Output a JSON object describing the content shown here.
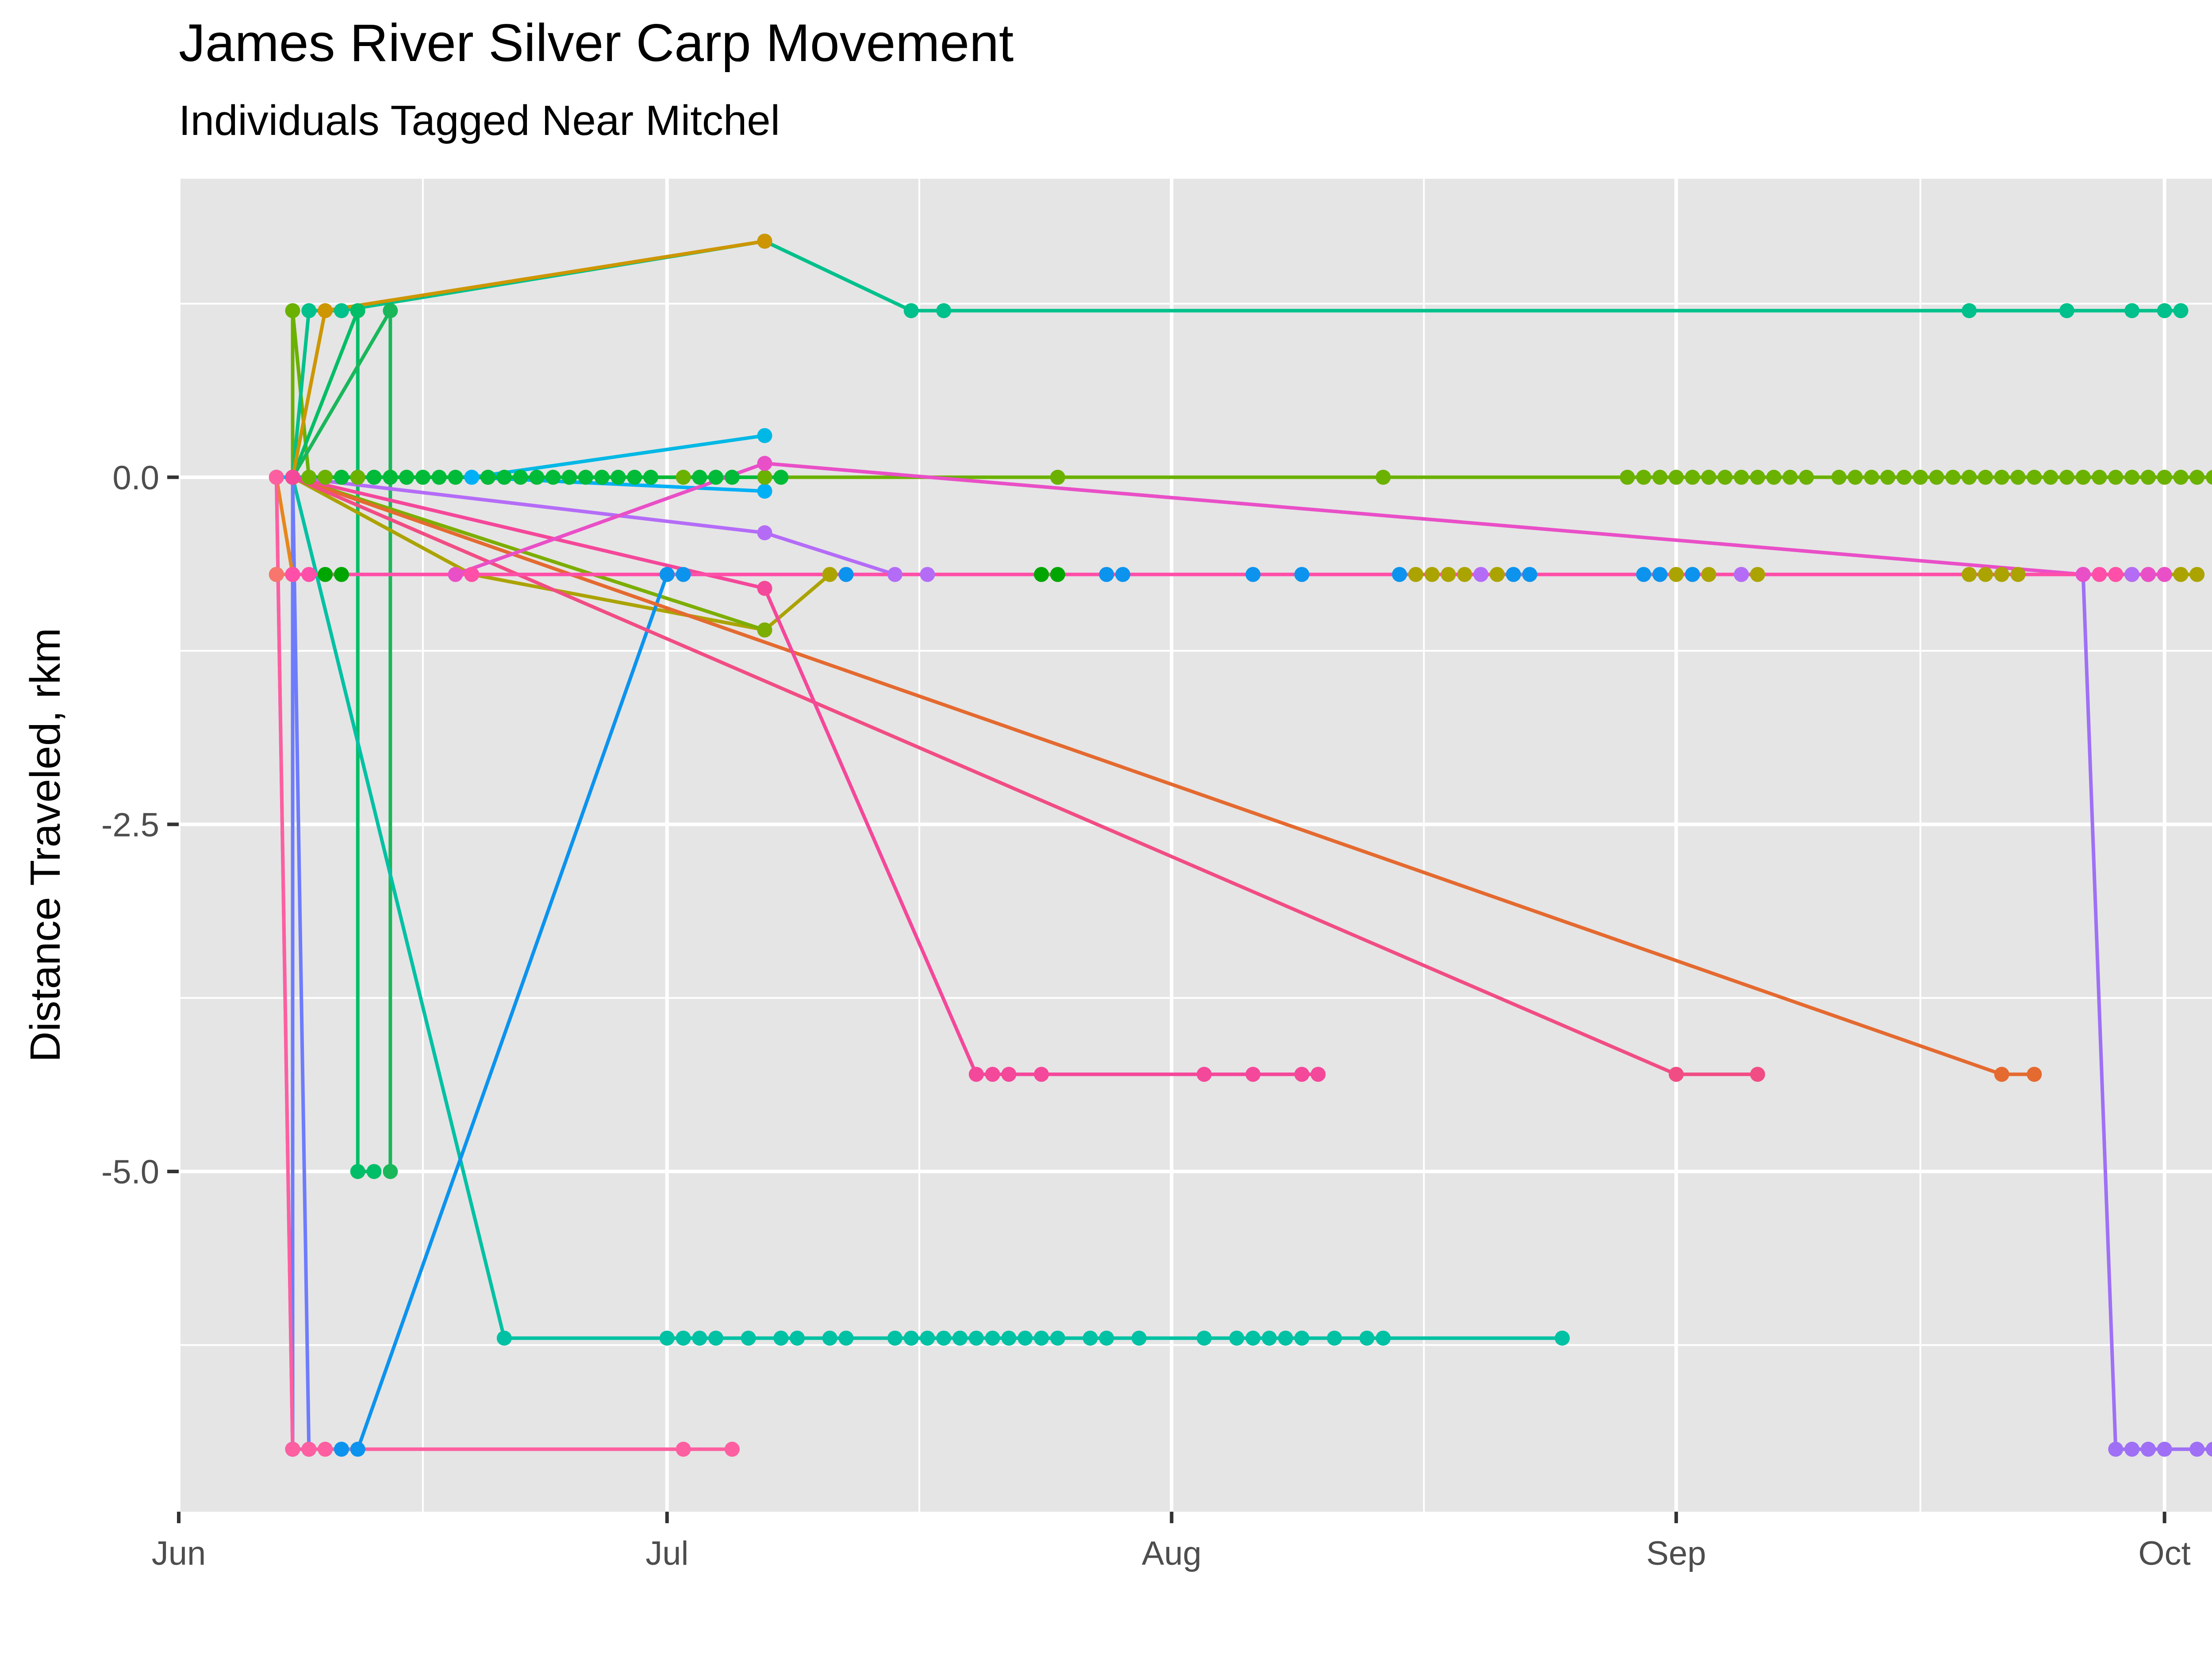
{
  "chart_data": {
    "type": "line",
    "title": "James River Silver Carp Movement",
    "subtitle": "Individuals Tagged Near Mitchel",
    "xlabel": "",
    "ylabel": "Distance Traveled, rkm",
    "x_is_date": true,
    "xlim": [
      "2023-06-01",
      "2023-10-09"
    ],
    "ylim": [
      -7.45,
      2.15
    ],
    "x_ticks": [
      {
        "date": "2023-06-01",
        "label": "Jun"
      },
      {
        "date": "2023-07-01",
        "label": "Jul"
      },
      {
        "date": "2023-08-01",
        "label": "Aug"
      },
      {
        "date": "2023-09-01",
        "label": "Sep"
      },
      {
        "date": "2023-10-01",
        "label": "Oct"
      }
    ],
    "y_ticks": [
      {
        "value": -5.0,
        "label": "-5.0"
      },
      {
        "value": -2.5,
        "label": "-2.5"
      },
      {
        "value": 0.0,
        "label": "0.0"
      }
    ],
    "grid": true,
    "legend": "none",
    "colors": {
      "panel_background": "#e5e5e5",
      "grid": "#ffffff",
      "tick_label": "#4d4d4d"
    },
    "series": [
      {
        "color": "#00b8e5",
        "points": [
          [
            "2023-06-07",
            0
          ],
          [
            "2023-06-08",
            0
          ],
          [
            "2023-06-19",
            0
          ],
          [
            "2023-07-07",
            0.3
          ]
        ]
      },
      {
        "color": "#00b0f6",
        "points": [
          [
            "2023-06-07",
            0
          ],
          [
            "2023-06-13",
            0
          ],
          [
            "2023-06-19",
            0
          ],
          [
            "2023-07-07",
            -0.1
          ]
        ]
      },
      {
        "color": "#6bb100",
        "points": [
          [
            "2023-06-08",
            0
          ],
          [
            "2023-06-08",
            1.2
          ],
          [
            "2023-06-09",
            0
          ],
          [
            "2023-06-10",
            0
          ],
          [
            "2023-06-12",
            0
          ],
          [
            "2023-06-15",
            0
          ],
          [
            "2023-06-20",
            0
          ],
          [
            "2023-06-25",
            0
          ],
          [
            "2023-07-02",
            0
          ],
          [
            "2023-07-07",
            0
          ],
          [
            "2023-07-25",
            0
          ],
          [
            "2023-08-14",
            0
          ],
          [
            "2023-08-29",
            0
          ],
          [
            "2023-08-30",
            0
          ],
          [
            "2023-08-31",
            0
          ],
          [
            "2023-09-01",
            0
          ],
          [
            "2023-09-02",
            0
          ],
          [
            "2023-09-03",
            0
          ],
          [
            "2023-09-04",
            0
          ],
          [
            "2023-09-05",
            0
          ],
          [
            "2023-09-06",
            0
          ],
          [
            "2023-09-07",
            0
          ],
          [
            "2023-09-08",
            0
          ],
          [
            "2023-09-09",
            0
          ],
          [
            "2023-09-11",
            0
          ],
          [
            "2023-09-12",
            0
          ],
          [
            "2023-09-13",
            0
          ],
          [
            "2023-09-14",
            0
          ],
          [
            "2023-09-15",
            0
          ],
          [
            "2023-09-16",
            0
          ],
          [
            "2023-09-17",
            0
          ],
          [
            "2023-09-18",
            0
          ],
          [
            "2023-09-19",
            0
          ],
          [
            "2023-09-20",
            0
          ],
          [
            "2023-09-21",
            0
          ],
          [
            "2023-09-22",
            0
          ],
          [
            "2023-09-23",
            0
          ],
          [
            "2023-09-24",
            0
          ],
          [
            "2023-09-25",
            0
          ],
          [
            "2023-09-26",
            0
          ],
          [
            "2023-09-27",
            0
          ],
          [
            "2023-09-28",
            0
          ],
          [
            "2023-09-29",
            0
          ],
          [
            "2023-09-30",
            0
          ],
          [
            "2023-10-01",
            0
          ],
          [
            "2023-10-02",
            0
          ],
          [
            "2023-10-03",
            0
          ],
          [
            "2023-10-04",
            0
          ],
          [
            "2023-10-05",
            0
          ]
        ]
      },
      {
        "color": "#00ba38",
        "points": [
          [
            "2023-06-08",
            0
          ],
          [
            "2023-06-11",
            0
          ],
          [
            "2023-06-13",
            0
          ],
          [
            "2023-06-14",
            0
          ],
          [
            "2023-06-15",
            0
          ],
          [
            "2023-06-16",
            0
          ],
          [
            "2023-06-17",
            0
          ],
          [
            "2023-06-18",
            0
          ],
          [
            "2023-06-20",
            0
          ],
          [
            "2023-06-21",
            0
          ],
          [
            "2023-06-22",
            0
          ],
          [
            "2023-06-23",
            0
          ],
          [
            "2023-06-24",
            0
          ],
          [
            "2023-06-25",
            0
          ],
          [
            "2023-06-26",
            0
          ],
          [
            "2023-06-27",
            0
          ],
          [
            "2023-06-28",
            0
          ],
          [
            "2023-06-29",
            0
          ],
          [
            "2023-06-30",
            0
          ],
          [
            "2023-07-03",
            0
          ],
          [
            "2023-07-04",
            0
          ],
          [
            "2023-07-05",
            0
          ],
          [
            "2023-07-08",
            0
          ]
        ]
      },
      {
        "color": "#00c08b",
        "points": [
          [
            "2023-06-08",
            0
          ],
          [
            "2023-06-09",
            1.2
          ],
          [
            "2023-06-11",
            1.2
          ],
          [
            "2023-07-07",
            1.7
          ],
          [
            "2023-07-16",
            1.2
          ],
          [
            "2023-07-18",
            1.2
          ],
          [
            "2023-09-19",
            1.2
          ],
          [
            "2023-09-25",
            1.2
          ],
          [
            "2023-09-29",
            1.2
          ],
          [
            "2023-10-01",
            1.2
          ],
          [
            "2023-10-02",
            1.2
          ]
        ]
      },
      {
        "color": "#00be67",
        "points": [
          [
            "2023-06-08",
            0
          ],
          [
            "2023-06-12",
            1.2
          ],
          [
            "2023-06-12",
            -5.0
          ],
          [
            "2023-06-13",
            -5.0
          ]
        ]
      },
      {
        "color": "#19b75a",
        "points": [
          [
            "2023-06-08",
            0
          ],
          [
            "2023-06-14",
            1.2
          ],
          [
            "2023-06-14",
            -5.0
          ]
        ]
      },
      {
        "color": "#cd9600",
        "points": [
          [
            "2023-06-08",
            0
          ],
          [
            "2023-06-10",
            1.2
          ],
          [
            "2023-07-07",
            1.7
          ]
        ]
      },
      {
        "color": "#00a600",
        "points": [
          [
            "2023-06-07",
            -0.7
          ],
          [
            "2023-06-08",
            -0.7
          ],
          [
            "2023-06-10",
            -0.7
          ],
          [
            "2023-06-11",
            -0.7
          ],
          [
            "2023-07-24",
            -0.7
          ],
          [
            "2023-07-25",
            -0.7
          ]
        ]
      },
      {
        "color": "#00c1a3",
        "points": [
          [
            "2023-06-08",
            0
          ],
          [
            "2023-06-21",
            -6.2
          ],
          [
            "2023-07-01",
            -6.2
          ],
          [
            "2023-07-02",
            -6.2
          ],
          [
            "2023-07-03",
            -6.2
          ],
          [
            "2023-07-04",
            -6.2
          ],
          [
            "2023-07-06",
            -6.2
          ],
          [
            "2023-07-08",
            -6.2
          ],
          [
            "2023-07-09",
            -6.2
          ],
          [
            "2023-07-11",
            -6.2
          ],
          [
            "2023-07-12",
            -6.2
          ],
          [
            "2023-07-15",
            -6.2
          ],
          [
            "2023-07-16",
            -6.2
          ],
          [
            "2023-07-17",
            -6.2
          ],
          [
            "2023-07-18",
            -6.2
          ],
          [
            "2023-07-19",
            -6.2
          ],
          [
            "2023-07-20",
            -6.2
          ],
          [
            "2023-07-21",
            -6.2
          ],
          [
            "2023-07-22",
            -6.2
          ],
          [
            "2023-07-23",
            -6.2
          ],
          [
            "2023-07-24",
            -6.2
          ],
          [
            "2023-07-25",
            -6.2
          ],
          [
            "2023-07-27",
            -6.2
          ],
          [
            "2023-07-28",
            -6.2
          ],
          [
            "2023-07-30",
            -6.2
          ],
          [
            "2023-08-03",
            -6.2
          ],
          [
            "2023-08-05",
            -6.2
          ],
          [
            "2023-08-06",
            -6.2
          ],
          [
            "2023-08-07",
            -6.2
          ],
          [
            "2023-08-08",
            -6.2
          ],
          [
            "2023-08-09",
            -6.2
          ],
          [
            "2023-08-11",
            -6.2
          ],
          [
            "2023-08-13",
            -6.2
          ],
          [
            "2023-08-14",
            -6.2
          ],
          [
            "2023-08-25",
            -6.2
          ]
        ]
      },
      {
        "color": "#aba300",
        "points": [
          [
            "2023-06-08",
            -0.7
          ],
          [
            "2023-06-08",
            0
          ],
          [
            "2023-06-19",
            -0.7
          ],
          [
            "2023-07-07",
            -1.1
          ],
          [
            "2023-07-11",
            -0.7
          ],
          [
            "2023-08-16",
            -0.7
          ],
          [
            "2023-08-17",
            -0.7
          ],
          [
            "2023-08-18",
            -0.7
          ],
          [
            "2023-08-19",
            -0.7
          ],
          [
            "2023-08-21",
            -0.7
          ],
          [
            "2023-09-01",
            -0.7
          ],
          [
            "2023-09-02",
            -0.7
          ],
          [
            "2023-09-03",
            -0.7
          ],
          [
            "2023-09-05",
            -0.7
          ],
          [
            "2023-09-06",
            -0.7
          ],
          [
            "2023-09-19",
            -0.7
          ],
          [
            "2023-09-20",
            -0.7
          ],
          [
            "2023-09-21",
            -0.7
          ],
          [
            "2023-09-22",
            -0.7
          ],
          [
            "2023-09-28",
            -0.7
          ],
          [
            "2023-09-29",
            -0.7
          ],
          [
            "2023-09-30",
            -0.7
          ],
          [
            "2023-10-01",
            -0.7
          ],
          [
            "2023-10-02",
            -0.7
          ],
          [
            "2023-10-03",
            -0.7
          ]
        ]
      },
      {
        "color": "#7cae00",
        "points": [
          [
            "2023-06-08",
            0
          ],
          [
            "2023-07-07",
            -1.1
          ]
        ]
      },
      {
        "color": "#0c93ee",
        "points": [
          [
            "2023-06-08",
            -7.0
          ],
          [
            "2023-06-11",
            -7.0
          ],
          [
            "2023-06-12",
            -7.0
          ],
          [
            "2023-07-01",
            -0.7
          ],
          [
            "2023-07-02",
            -0.7
          ],
          [
            "2023-07-12",
            -0.7
          ],
          [
            "2023-07-28",
            -0.7
          ],
          [
            "2023-07-29",
            -0.7
          ],
          [
            "2023-08-06",
            -0.7
          ],
          [
            "2023-08-09",
            -0.7
          ],
          [
            "2023-08-15",
            -0.7
          ],
          [
            "2023-08-22",
            -0.7
          ],
          [
            "2023-08-23",
            -0.7
          ],
          [
            "2023-08-30",
            -0.7
          ],
          [
            "2023-08-31",
            -0.7
          ],
          [
            "2023-09-02",
            -0.7
          ]
        ]
      },
      {
        "color": "#6e7cfb",
        "points": [
          [
            "2023-06-07",
            0
          ],
          [
            "2023-06-08",
            -7.0
          ],
          [
            "2023-06-08",
            0
          ],
          [
            "2023-06-09",
            -7.0
          ]
        ]
      },
      {
        "color": "#b46cf7",
        "points": [
          [
            "2023-06-08",
            0
          ],
          [
            "2023-07-07",
            -0.4
          ],
          [
            "2023-07-15",
            -0.7
          ],
          [
            "2023-07-17",
            -0.7
          ],
          [
            "2023-08-20",
            -0.7
          ],
          [
            "2023-09-05",
            -0.7
          ],
          [
            "2023-09-26",
            -0.7
          ],
          [
            "2023-09-29",
            -0.7
          ]
        ]
      },
      {
        "color": "#9f70f5",
        "points": [
          [
            "2023-06-08",
            -0.7
          ],
          [
            "2023-09-26",
            -0.7
          ],
          [
            "2023-09-28",
            -7.0
          ],
          [
            "2023-09-29",
            -7.0
          ],
          [
            "2023-09-30",
            -7.0
          ],
          [
            "2023-10-01",
            -7.0
          ],
          [
            "2023-10-03",
            -7.0
          ],
          [
            "2023-10-04",
            -7.0
          ]
        ]
      },
      {
        "color": "#e7861b",
        "points": [
          [
            "2023-06-07",
            0
          ],
          [
            "2023-06-08",
            -0.7
          ]
        ]
      },
      {
        "color": "#e46a30",
        "points": [
          [
            "2023-06-08",
            0
          ],
          [
            "2023-09-21",
            -4.3
          ],
          [
            "2023-09-23",
            -4.3
          ]
        ]
      },
      {
        "color": "#f14d85",
        "points": [
          [
            "2023-06-08",
            0
          ],
          [
            "2023-09-01",
            -4.3
          ],
          [
            "2023-09-06",
            -4.3
          ]
        ]
      },
      {
        "color": "#f4489a",
        "points": [
          [
            "2023-06-08",
            0
          ],
          [
            "2023-07-07",
            -0.8
          ],
          [
            "2023-07-20",
            -4.3
          ],
          [
            "2023-07-21",
            -4.3
          ],
          [
            "2023-07-22",
            -4.3
          ],
          [
            "2023-07-24",
            -4.3
          ],
          [
            "2023-08-03",
            -4.3
          ],
          [
            "2023-08-06",
            -4.3
          ],
          [
            "2023-08-09",
            -4.3
          ],
          [
            "2023-08-10",
            -4.3
          ]
        ]
      },
      {
        "color": "#e94fc7",
        "points": [
          [
            "2023-06-18",
            -0.7
          ],
          [
            "2023-07-07",
            0.1
          ],
          [
            "2023-09-26",
            -0.7
          ],
          [
            "2023-09-30",
            -0.7
          ],
          [
            "2023-10-01",
            -0.7
          ]
        ]
      },
      {
        "color": "#f8766d",
        "points": [
          [
            "2023-06-07",
            -0.7
          ],
          [
            "2023-06-08",
            -0.7
          ]
        ]
      },
      {
        "color": "#fd5fa0",
        "points": [
          [
            "2023-06-07",
            0
          ],
          [
            "2023-06-08",
            -7.0
          ],
          [
            "2023-06-09",
            -7.0
          ],
          [
            "2023-06-10",
            -7.0
          ],
          [
            "2023-07-02",
            -7.0
          ],
          [
            "2023-07-05",
            -7.0
          ]
        ]
      },
      {
        "color": "#ff4fa8",
        "points": [
          [
            "2023-06-08",
            -0.7
          ],
          [
            "2023-06-09",
            -0.7
          ],
          [
            "2023-06-19",
            -0.7
          ],
          [
            "2023-09-27",
            -0.7
          ],
          [
            "2023-09-28",
            -0.7
          ]
        ]
      }
    ]
  }
}
